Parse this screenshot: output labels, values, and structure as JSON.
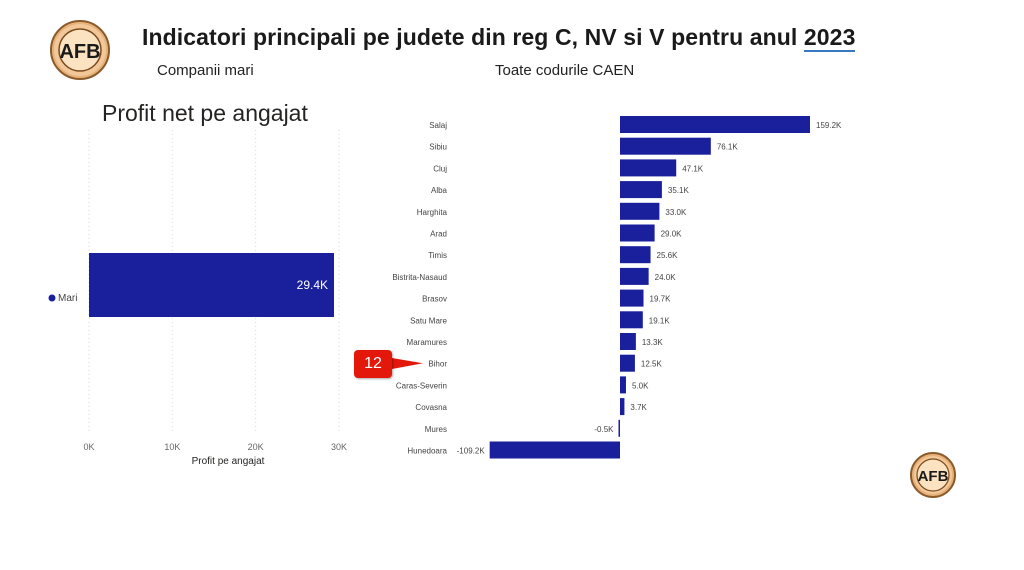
{
  "header": {
    "logo_text": "AFB",
    "title_prefix": "Indicatori principali pe judete din reg C, NV si V pentru anul ",
    "title_year": "2023",
    "filter_company": "Companii mari",
    "filter_caen": "Toate codurile CAEN"
  },
  "callout": {
    "label": "12"
  },
  "colors": {
    "bar": "#1a1f9c",
    "callout": "#e3170a",
    "grid": "#d9d9d9"
  },
  "chart_data": [
    {
      "type": "bar",
      "orientation": "horizontal",
      "title": "Profit net pe angajat",
      "xlabel": "Profit pe angajat",
      "ylabel": "",
      "xlim": [
        0,
        30000
      ],
      "xticks": [
        {
          "value": 0,
          "label": "0K"
        },
        {
          "value": 10000,
          "label": "10K"
        },
        {
          "value": 20000,
          "label": "20K"
        },
        {
          "value": 30000,
          "label": "30K"
        }
      ],
      "grid": true,
      "legend": {
        "position": "left",
        "entries": [
          "Mari"
        ]
      },
      "categories": [
        "Mari"
      ],
      "values": [
        29400
      ],
      "data_labels": [
        "29.4K"
      ]
    },
    {
      "type": "bar",
      "orientation": "horizontal",
      "categories": [
        "Salaj",
        "Sibiu",
        "Cluj",
        "Alba",
        "Harghita",
        "Arad",
        "Timis",
        "Bistrita-Nasaud",
        "Brasov",
        "Satu Mare",
        "Maramures",
        "Bihor",
        "Caras-Severin",
        "Covasna",
        "Mures",
        "Hunedoara"
      ],
      "values": [
        159200,
        76100,
        47100,
        35100,
        33000,
        29000,
        25600,
        24000,
        19700,
        19100,
        13300,
        12500,
        5000,
        3700,
        -500,
        -109200
      ],
      "data_labels": [
        "159.2K",
        "76.1K",
        "47.1K",
        "35.1K",
        "33.0K",
        "29.0K",
        "25.6K",
        "24.0K",
        "19.7K",
        "19.1K",
        "13.3K",
        "12.5K",
        "5.0K",
        "3.7K",
        "-0.5K",
        "-109.2K"
      ],
      "highlight": "Bihor"
    }
  ]
}
